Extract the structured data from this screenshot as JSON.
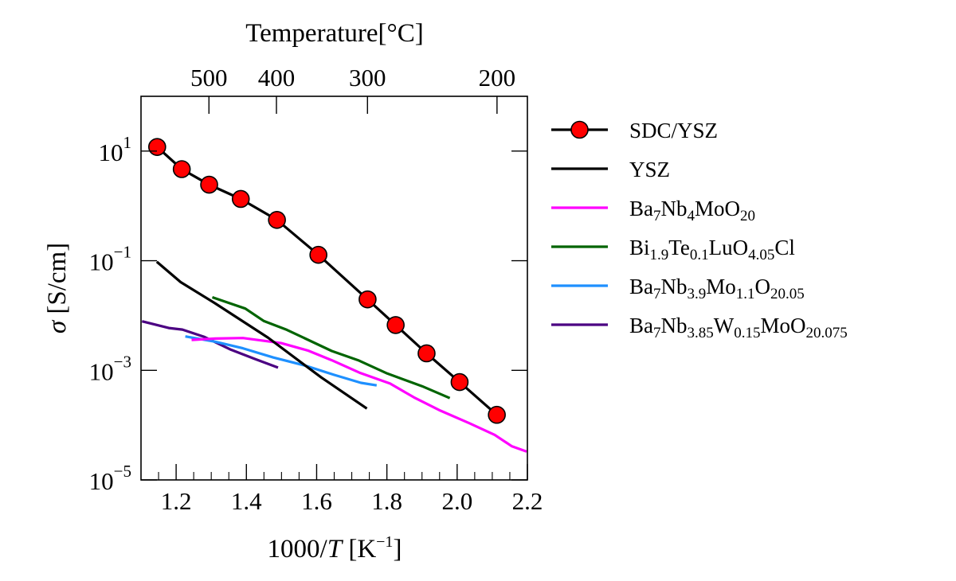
{
  "chart_data": {
    "type": "line",
    "title": "",
    "xlabel": "1000/T [K^-1]",
    "xlabel_parts": {
      "prefix": "1000/",
      "italic": "T",
      "unit_open": " [K",
      "unit_sup": "−1",
      "unit_close": "]"
    },
    "ylabel": "σ [S/cm]",
    "ylabel_parts": {
      "symbol": "σ",
      "unit": " [S/cm]"
    },
    "top_xlabel": "Temperature[°C]",
    "xlim": [
      1.1,
      2.2
    ],
    "ylim": [
      1e-05,
      100
    ],
    "yscale": "log",
    "grid": false,
    "legend_position": "outside-right",
    "x_ticks": [
      {
        "value": 1.2,
        "label": "1.2"
      },
      {
        "value": 1.4,
        "label": "1.4"
      },
      {
        "value": 1.6,
        "label": "1.6"
      },
      {
        "value": 1.8,
        "label": "1.8"
      },
      {
        "value": 2.0,
        "label": "2.0"
      },
      {
        "value": 2.2,
        "label": "2.2"
      }
    ],
    "x_minor_step": 0.05,
    "y_ticks": [
      {
        "exp": 1,
        "base": "10",
        "sup": "1"
      },
      {
        "exp": -1,
        "base": "10",
        "sup": "−1"
      },
      {
        "exp": -3,
        "base": "10",
        "sup": "−3"
      },
      {
        "exp": -5,
        "base": "10",
        "sup": "−5"
      }
    ],
    "top_ticks": [
      {
        "celsius": 500,
        "label": "500"
      },
      {
        "celsius": 400,
        "label": "400"
      },
      {
        "celsius": 300,
        "label": "300"
      },
      {
        "celsius": 200,
        "label": "200"
      }
    ],
    "series": [
      {
        "name": "SDC/YSZ",
        "legend": [
          {
            "t": "SDC/YSZ"
          }
        ],
        "color": "#000000",
        "marker": true,
        "marker_color": "#ff0000",
        "x": [
          1.146,
          1.216,
          1.294,
          1.384,
          1.487,
          1.605,
          1.745,
          1.825,
          1.913,
          2.007,
          2.113
        ],
        "y": [
          11.9,
          4.69,
          2.44,
          1.34,
          0.555,
          0.128,
          0.0197,
          0.0067,
          0.00204,
          0.00061,
          0.000154
        ]
      },
      {
        "name": "YSZ",
        "legend": [
          {
            "t": "YSZ"
          }
        ],
        "color": "#000000",
        "marker": false,
        "x": [
          1.145,
          1.213,
          1.311,
          1.462,
          1.613,
          1.743
        ],
        "y": [
          0.0957,
          0.0406,
          0.0167,
          0.00393,
          0.000741,
          0.000201
        ]
      },
      {
        "name": "Ba7Nb4MoO20",
        "legend": [
          {
            "t": "Ba"
          },
          {
            "s": "7"
          },
          {
            "t": "Nb"
          },
          {
            "s": "4"
          },
          {
            "t": "MoO"
          },
          {
            "s": "20"
          }
        ],
        "color": "#ff00ff",
        "marker": false,
        "x": [
          1.244,
          1.311,
          1.39,
          1.499,
          1.575,
          1.643,
          1.722,
          1.809,
          1.877,
          1.952,
          2.035,
          2.107,
          2.156,
          2.198
        ],
        "y": [
          0.00359,
          0.0038,
          0.00389,
          0.00314,
          0.0023,
          0.00153,
          0.000906,
          0.000573,
          0.000321,
          0.000184,
          0.000108,
          6.64e-05,
          4.1e-05,
          3.29e-05
        ]
      },
      {
        "name": "Bi1.9Te0.1LuO4.05Cl",
        "legend": [
          {
            "t": "Bi"
          },
          {
            "s": "1.9"
          },
          {
            "t": "Te"
          },
          {
            "s": "0.1"
          },
          {
            "t": "LuO"
          },
          {
            "s": "4.05"
          },
          {
            "t": "Cl"
          }
        ],
        "color": "#006400",
        "marker": false,
        "x": [
          1.303,
          1.397,
          1.45,
          1.515,
          1.643,
          1.718,
          1.801,
          1.9,
          1.979
        ],
        "y": [
          0.0215,
          0.0134,
          0.00793,
          0.00548,
          0.00225,
          0.00153,
          0.000875,
          0.000513,
          0.000311
        ]
      },
      {
        "name": "Ba7Nb3.9Mo1.1O20.05",
        "legend": [
          {
            "t": "Ba"
          },
          {
            "s": "7"
          },
          {
            "t": "Nb"
          },
          {
            "s": "3.9"
          },
          {
            "t": "Mo"
          },
          {
            "s": "1.1"
          },
          {
            "t": "O"
          },
          {
            "s": "20.05"
          }
        ],
        "color": "#1e90ff",
        "marker": false,
        "x": [
          1.226,
          1.311,
          1.39,
          1.477,
          1.567,
          1.65,
          1.726,
          1.771
        ],
        "y": [
          0.00416,
          0.00333,
          0.00252,
          0.00171,
          0.00122,
          0.000826,
          0.000592,
          0.000531
        ]
      },
      {
        "name": "Ba7Nb3.85W0.15MoO20.075",
        "legend": [
          {
            "t": "Ba"
          },
          {
            "s": "7"
          },
          {
            "t": "Nb"
          },
          {
            "s": "3.85"
          },
          {
            "t": "W"
          },
          {
            "s": "0.15"
          },
          {
            "t": "MoO"
          },
          {
            "s": "20.075"
          }
        ],
        "color": "#4b0082",
        "marker": false,
        "x": [
          1.103,
          1.179,
          1.218,
          1.281,
          1.356,
          1.424,
          1.49
        ],
        "y": [
          0.00783,
          0.00592,
          0.00553,
          0.00406,
          0.00238,
          0.00161,
          0.00112
        ]
      }
    ]
  }
}
